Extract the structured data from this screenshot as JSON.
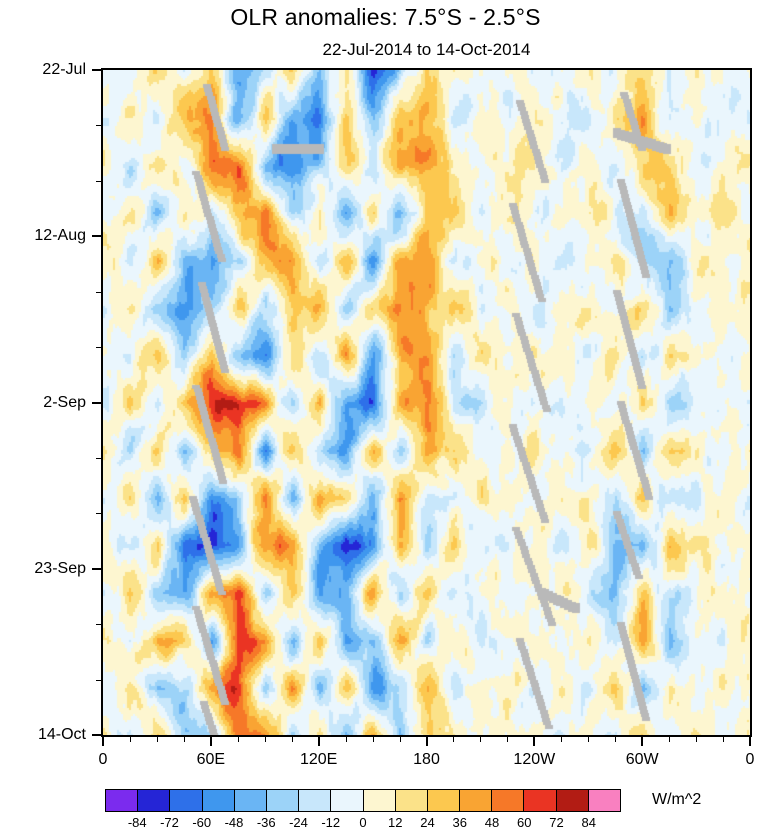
{
  "figure": {
    "title": "OLR anomalies: 7.5°S - 2.5°S",
    "subtitle": "22-Jul-2014 to 14-Oct-2014"
  },
  "chart_data": {
    "type": "heatmap",
    "title": "OLR anomalies: 7.5°S - 2.5°S",
    "subtitle": "22-Jul-2014 to 14-Oct-2014",
    "description": "Time-longitude (Hovmoller) plot of OLR anomalies averaged 7.5S-2.5S",
    "units": "W/m^2",
    "x_axis": {
      "range_deg": [
        0,
        360
      ],
      "minor_step_deg": 15,
      "label_ticks": [
        {
          "lon": 0,
          "label": "0"
        },
        {
          "lon": 60,
          "label": "60E"
        },
        {
          "lon": 120,
          "label": "120E"
        },
        {
          "lon": 180,
          "label": "180"
        },
        {
          "lon": 240,
          "label": "120W"
        },
        {
          "lon": 300,
          "label": "60W"
        },
        {
          "lon": 360,
          "label": "0"
        }
      ]
    },
    "y_axis": {
      "range_days": [
        0,
        84
      ],
      "minor_step_days": 7,
      "label_ticks": [
        {
          "day": 0,
          "label": "22-Jul"
        },
        {
          "day": 21,
          "label": "12-Aug"
        },
        {
          "day": 42,
          "label": "2-Sep"
        },
        {
          "day": 63,
          "label": "23-Sep"
        },
        {
          "day": 84,
          "label": "14-Oct"
        }
      ]
    },
    "levels": [
      -84,
      -72,
      -60,
      -48,
      -36,
      -24,
      -12,
      0,
      12,
      24,
      36,
      48,
      60,
      72,
      84
    ],
    "colors": [
      "#7b2bee",
      "#2525d6",
      "#2e70e9",
      "#3f97ee",
      "#6ab5f4",
      "#9cd3f8",
      "#c8e7fb",
      "#eaf6fd",
      "#fdf6d0",
      "#fbe289",
      "#fcc84f",
      "#f9a433",
      "#f67828",
      "#ea3423",
      "#b21c14",
      "#f980c0"
    ],
    "missing_color": "#b9b9b9",
    "noise_amplitude": 18,
    "grid": {
      "lon_step_deg": 15,
      "day_step": 6,
      "values": [
        [
          5,
          -15,
          20,
          -10,
          35,
          -45,
          -20,
          15,
          -35,
          10,
          -70,
          -30,
          25,
          10,
          -10,
          5,
          -5,
          5,
          10,
          -10,
          25,
          -15,
          5,
          -5,
          5
        ],
        [
          -5,
          10,
          -20,
          30,
          45,
          -55,
          30,
          -40,
          -55,
          20,
          -40,
          35,
          40,
          -15,
          10,
          -10,
          10,
          -5,
          -15,
          20,
          40,
          -20,
          10,
          -10,
          -5
        ],
        [
          10,
          -25,
          30,
          -15,
          55,
          60,
          -50,
          -60,
          -30,
          25,
          -20,
          45,
          40,
          15,
          -5,
          5,
          15,
          -10,
          5,
          -15,
          30,
          15,
          -10,
          5,
          10
        ],
        [
          -10,
          20,
          -30,
          25,
          -20,
          40,
          55,
          -35,
          20,
          -45,
          30,
          -50,
          35,
          25,
          -15,
          10,
          -10,
          10,
          15,
          -5,
          -25,
          30,
          -5,
          10,
          -10
        ],
        [
          15,
          -20,
          25,
          -40,
          -55,
          -25,
          40,
          50,
          -25,
          35,
          -55,
          40,
          50,
          -20,
          10,
          -5,
          5,
          -15,
          -5,
          15,
          -30,
          -40,
          15,
          -5,
          15
        ],
        [
          -5,
          15,
          -35,
          -50,
          -30,
          35,
          -30,
          25,
          40,
          -35,
          25,
          55,
          30,
          30,
          -10,
          5,
          -15,
          5,
          10,
          -20,
          35,
          -25,
          -10,
          10,
          -5
        ],
        [
          10,
          -15,
          30,
          -25,
          40,
          -45,
          -60,
          30,
          -35,
          45,
          -50,
          35,
          45,
          -25,
          15,
          -10,
          10,
          15,
          -10,
          25,
          -35,
          20,
          10,
          -10,
          10
        ],
        [
          -10,
          25,
          -20,
          35,
          70,
          80,
          45,
          -30,
          35,
          -60,
          -70,
          40,
          55,
          -15,
          -25,
          10,
          -10,
          -20,
          10,
          -15,
          25,
          -35,
          -15,
          5,
          -10
        ],
        [
          15,
          -30,
          25,
          -45,
          30,
          55,
          -50,
          40,
          -30,
          -55,
          35,
          -30,
          40,
          20,
          -15,
          -5,
          15,
          -10,
          -20,
          30,
          -40,
          25,
          5,
          -10,
          15
        ],
        [
          -15,
          20,
          -40,
          30,
          -55,
          -35,
          50,
          -45,
          45,
          30,
          -45,
          50,
          -30,
          -20,
          20,
          5,
          -10,
          15,
          10,
          -25,
          35,
          -30,
          -10,
          10,
          -15
        ],
        [
          10,
          -25,
          35,
          -60,
          -75,
          -45,
          55,
          50,
          -40,
          -80,
          -60,
          40,
          -25,
          25,
          -15,
          -10,
          10,
          -15,
          15,
          -35,
          -45,
          30,
          15,
          -10,
          10
        ],
        [
          -10,
          30,
          -30,
          -55,
          45,
          65,
          -45,
          35,
          -55,
          -40,
          45,
          -35,
          35,
          -20,
          10,
          5,
          -15,
          10,
          -10,
          -40,
          25,
          -20,
          -5,
          15,
          -10
        ],
        [
          15,
          -20,
          40,
          30,
          -50,
          70,
          45,
          -40,
          35,
          -50,
          -35,
          45,
          -30,
          15,
          -20,
          -5,
          10,
          -10,
          20,
          -30,
          40,
          -35,
          10,
          -5,
          15
        ],
        [
          -5,
          25,
          -35,
          -25,
          35,
          75,
          -35,
          45,
          -45,
          40,
          -55,
          -30,
          40,
          -15,
          15,
          10,
          -15,
          15,
          -15,
          35,
          -45,
          25,
          -10,
          10,
          -5
        ],
        [
          10,
          -15,
          25,
          -40,
          -25,
          55,
          60,
          -35,
          30,
          -40,
          35,
          -45,
          30,
          20,
          -10,
          -5,
          15,
          -20,
          10,
          -25,
          30,
          -15,
          5,
          -10,
          10
        ]
      ]
    },
    "missing_segments": [
      [
        58,
        2,
        68,
        10
      ],
      [
        52,
        13,
        66,
        24
      ],
      [
        55,
        27,
        68,
        38
      ],
      [
        52,
        40,
        67,
        52
      ],
      [
        50,
        54,
        66,
        66
      ],
      [
        52,
        68,
        68,
        80
      ],
      [
        56,
        80,
        62,
        84
      ],
      [
        232,
        4,
        246,
        14
      ],
      [
        228,
        17,
        244,
        29
      ],
      [
        230,
        31,
        247,
        43
      ],
      [
        228,
        45,
        246,
        57
      ],
      [
        230,
        58,
        250,
        70
      ],
      [
        232,
        72,
        248,
        83
      ],
      [
        290,
        3,
        300,
        10
      ],
      [
        288,
        14,
        302,
        26
      ],
      [
        286,
        28,
        300,
        40
      ],
      [
        288,
        42,
        304,
        54
      ],
      [
        286,
        56,
        298,
        64
      ],
      [
        288,
        70,
        302,
        82
      ],
      [
        96,
        10,
        121,
        10,
        10
      ],
      [
        286,
        8,
        314,
        10,
        10
      ],
      [
        244,
        66,
        263,
        68,
        10
      ]
    ]
  }
}
